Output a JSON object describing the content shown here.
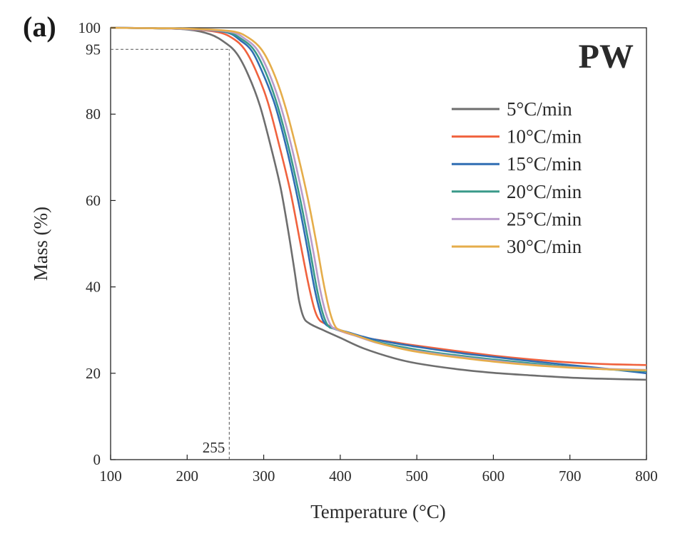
{
  "panel_label": "(a)",
  "chart_data": {
    "type": "line",
    "title": "PW",
    "xlabel": "Temperature (°C)",
    "ylabel": "Mass (%)",
    "xlim": [
      100,
      800
    ],
    "ylim": [
      0,
      100
    ],
    "xticks": [
      100,
      200,
      300,
      400,
      500,
      600,
      700,
      800
    ],
    "yticks": [
      0,
      20,
      40,
      60,
      80,
      100
    ],
    "grid": false,
    "legend_position": "top-right",
    "annotations": [
      {
        "type": "hline",
        "y": 95,
        "x_from": 100,
        "x_to": 255,
        "label": "95",
        "style": "dashed"
      },
      {
        "type": "vline",
        "x": 255,
        "y_from": 0,
        "y_to": 95,
        "label": "255",
        "style": "dashed"
      }
    ],
    "series": [
      {
        "name": "5°C/min",
        "color": "#6e6e6e",
        "points": [
          [
            100,
            100
          ],
          [
            150,
            99.9
          ],
          [
            200,
            99.6
          ],
          [
            230,
            98.5
          ],
          [
            250,
            96.5
          ],
          [
            265,
            94
          ],
          [
            280,
            89
          ],
          [
            295,
            82
          ],
          [
            310,
            72
          ],
          [
            322,
            63
          ],
          [
            332,
            53
          ],
          [
            340,
            44
          ],
          [
            346,
            37
          ],
          [
            352,
            33
          ],
          [
            360,
            31.5
          ],
          [
            380,
            29.8
          ],
          [
            400,
            28.2
          ],
          [
            430,
            25.8
          ],
          [
            470,
            23.5
          ],
          [
            500,
            22.3
          ],
          [
            550,
            21
          ],
          [
            600,
            20.1
          ],
          [
            650,
            19.5
          ],
          [
            700,
            19
          ],
          [
            750,
            18.7
          ],
          [
            800,
            18.5
          ]
        ]
      },
      {
        "name": "10°C/min",
        "color": "#f0623e",
        "points": [
          [
            100,
            100
          ],
          [
            150,
            99.9
          ],
          [
            200,
            99.7
          ],
          [
            240,
            99
          ],
          [
            260,
            97.5
          ],
          [
            275,
            95
          ],
          [
            290,
            90
          ],
          [
            305,
            83
          ],
          [
            320,
            73
          ],
          [
            335,
            62
          ],
          [
            348,
            50
          ],
          [
            358,
            41
          ],
          [
            366,
            35
          ],
          [
            372,
            32.5
          ],
          [
            380,
            31.5
          ],
          [
            400,
            29.8
          ],
          [
            430,
            28.3
          ],
          [
            470,
            27.2
          ],
          [
            500,
            26.4
          ],
          [
            550,
            25.2
          ],
          [
            600,
            24.1
          ],
          [
            650,
            23.2
          ],
          [
            700,
            22.5
          ],
          [
            750,
            22.1
          ],
          [
            800,
            21.9
          ]
        ]
      },
      {
        "name": "15°C/min",
        "color": "#2f6db3",
        "points": [
          [
            100,
            100
          ],
          [
            150,
            99.9
          ],
          [
            200,
            99.7
          ],
          [
            250,
            99
          ],
          [
            270,
            97
          ],
          [
            285,
            94.5
          ],
          [
            300,
            89
          ],
          [
            315,
            82
          ],
          [
            330,
            72
          ],
          [
            345,
            60
          ],
          [
            357,
            49
          ],
          [
            366,
            40
          ],
          [
            374,
            34
          ],
          [
            380,
            31.5
          ],
          [
            390,
            30.5
          ],
          [
            410,
            29.5
          ],
          [
            440,
            28
          ],
          [
            480,
            26.7
          ],
          [
            520,
            25.6
          ],
          [
            560,
            24.6
          ],
          [
            600,
            23.8
          ],
          [
            650,
            22.8
          ],
          [
            700,
            21.9
          ],
          [
            750,
            21
          ],
          [
            800,
            20
          ]
        ]
      },
      {
        "name": "20°C/min",
        "color": "#3a9a8a",
        "points": [
          [
            100,
            100
          ],
          [
            150,
            99.9
          ],
          [
            200,
            99.7
          ],
          [
            250,
            99.1
          ],
          [
            272,
            97.3
          ],
          [
            288,
            94.7
          ],
          [
            303,
            89.5
          ],
          [
            318,
            82
          ],
          [
            333,
            72
          ],
          [
            348,
            60
          ],
          [
            360,
            49
          ],
          [
            369,
            40
          ],
          [
            377,
            34
          ],
          [
            384,
            31
          ],
          [
            392,
            30.3
          ],
          [
            410,
            29.3
          ],
          [
            440,
            27.6
          ],
          [
            480,
            26.1
          ],
          [
            520,
            24.9
          ],
          [
            560,
            24
          ],
          [
            600,
            23.2
          ],
          [
            650,
            22.3
          ],
          [
            700,
            21.5
          ],
          [
            750,
            20.9
          ],
          [
            800,
            20.5
          ]
        ]
      },
      {
        "name": "25°C/min",
        "color": "#b99ccb",
        "points": [
          [
            100,
            100
          ],
          [
            150,
            99.9
          ],
          [
            200,
            99.7
          ],
          [
            255,
            99.1
          ],
          [
            276,
            97.4
          ],
          [
            292,
            94.8
          ],
          [
            307,
            89.5
          ],
          [
            322,
            82
          ],
          [
            337,
            72
          ],
          [
            352,
            60
          ],
          [
            364,
            49
          ],
          [
            373,
            40
          ],
          [
            381,
            34
          ],
          [
            388,
            31
          ],
          [
            396,
            30.1
          ],
          [
            415,
            29
          ],
          [
            445,
            27.2
          ],
          [
            485,
            25.6
          ],
          [
            525,
            24.5
          ],
          [
            565,
            23.6
          ],
          [
            600,
            22.9
          ],
          [
            650,
            22
          ],
          [
            700,
            21.4
          ],
          [
            750,
            21
          ],
          [
            800,
            20.8
          ]
        ]
      },
      {
        "name": "30°C/min",
        "color": "#e5ad4a",
        "points": [
          [
            100,
            100
          ],
          [
            150,
            99.9
          ],
          [
            200,
            99.8
          ],
          [
            258,
            99.2
          ],
          [
            280,
            97.7
          ],
          [
            297,
            95
          ],
          [
            312,
            90
          ],
          [
            327,
            82.5
          ],
          [
            342,
            72.5
          ],
          [
            357,
            61
          ],
          [
            369,
            50
          ],
          [
            378,
            41
          ],
          [
            386,
            34.5
          ],
          [
            393,
            31
          ],
          [
            400,
            30
          ],
          [
            420,
            28.8
          ],
          [
            450,
            27
          ],
          [
            490,
            25.3
          ],
          [
            530,
            24.2
          ],
          [
            570,
            23.3
          ],
          [
            600,
            22.7
          ],
          [
            650,
            21.9
          ],
          [
            700,
            21.3
          ],
          [
            750,
            20.9
          ],
          [
            800,
            20.7
          ]
        ]
      }
    ]
  }
}
